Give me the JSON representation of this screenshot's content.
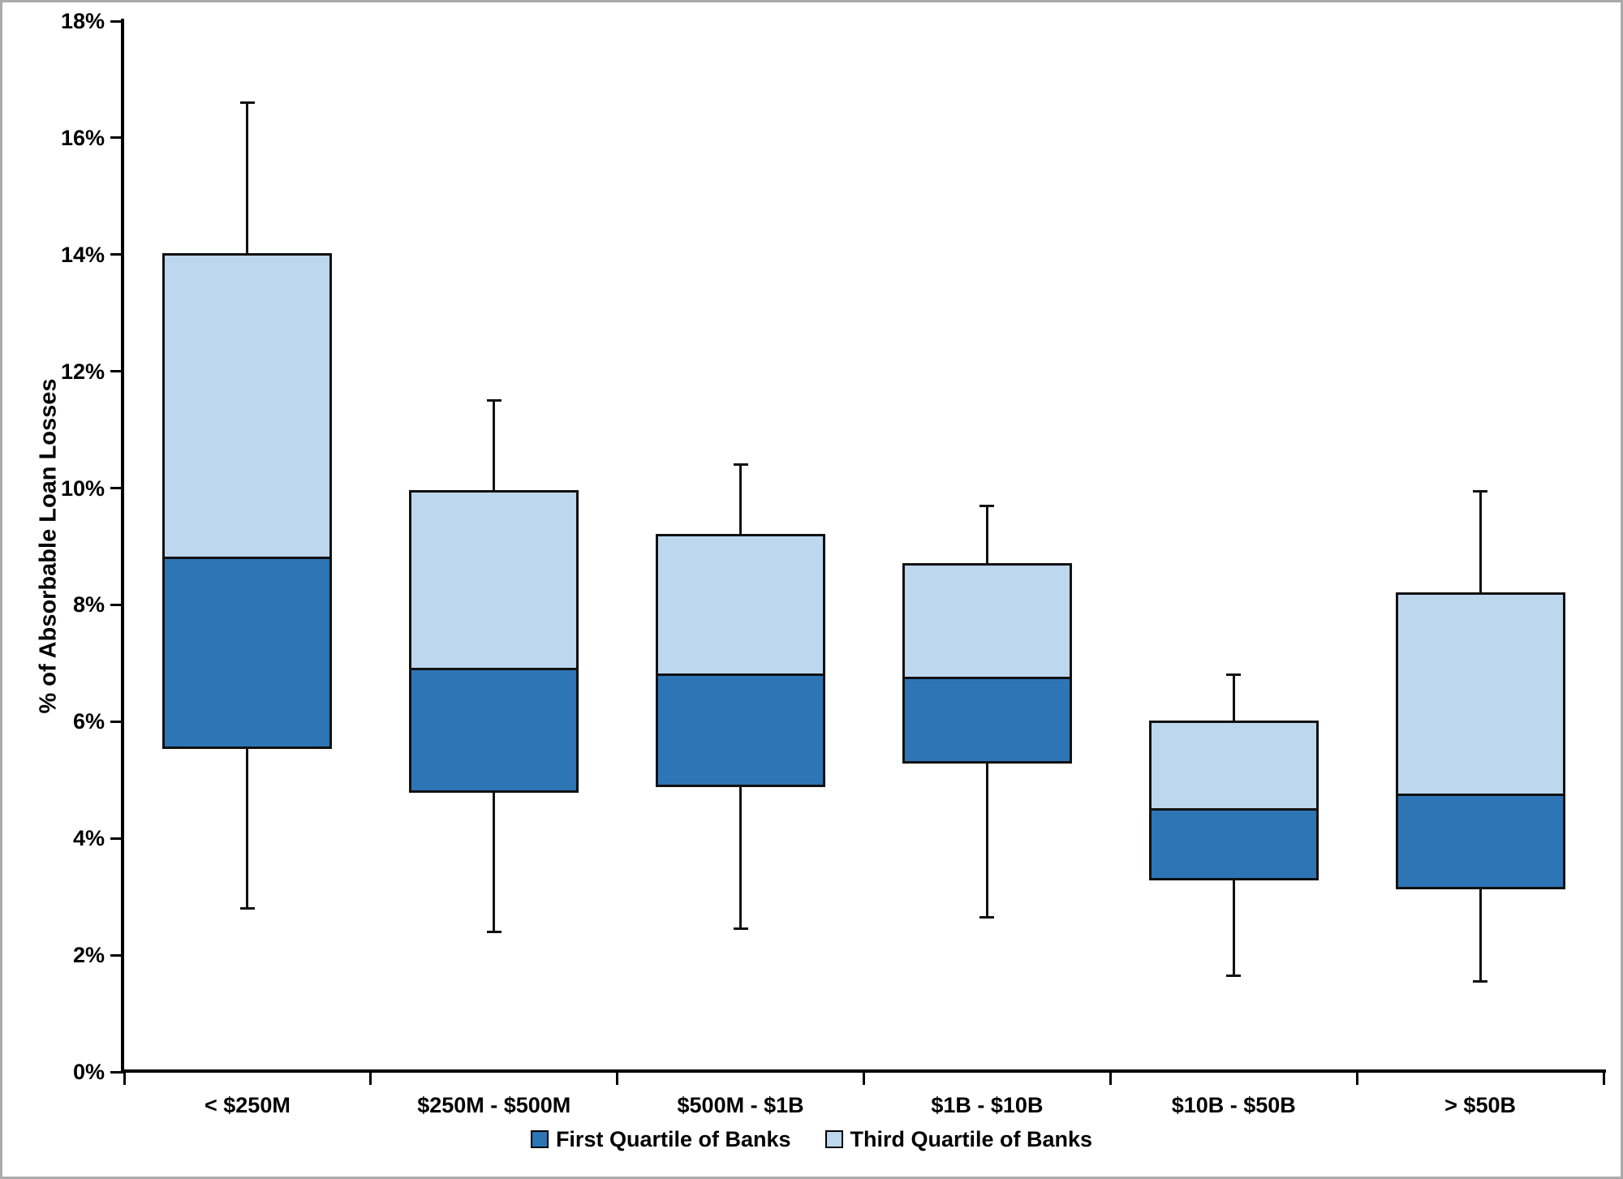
{
  "chart_data": {
    "type": "boxplot",
    "title": "",
    "xlabel": "",
    "ylabel": "% of Absorbable Loan Losses",
    "y_axis": {
      "min": 0,
      "max": 18,
      "step": 2,
      "tick_labels": [
        "0%",
        "2%",
        "4%",
        "6%",
        "8%",
        "10%",
        "12%",
        "14%",
        "16%",
        "18%"
      ]
    },
    "categories": [
      "< $250M",
      "$250M - $500M",
      "$500M - $1B",
      "$1B - $10B",
      "$10B - $50B",
      "> $50B"
    ],
    "series": [
      {
        "label": "< $250M",
        "whisker_low": 2.8,
        "box_low": 5.55,
        "box_mid": 8.8,
        "box_high": 14.0,
        "whisker_high": 16.6
      },
      {
        "label": "$250M - $500M",
        "whisker_low": 2.4,
        "box_low": 4.8,
        "box_mid": 6.9,
        "box_high": 9.95,
        "whisker_high": 11.5
      },
      {
        "label": "$500M - $1B",
        "whisker_low": 2.45,
        "box_low": 4.9,
        "box_mid": 6.8,
        "box_high": 9.2,
        "whisker_high": 10.4
      },
      {
        "label": "$1B - $10B",
        "whisker_low": 2.65,
        "box_low": 5.3,
        "box_mid": 6.75,
        "box_high": 8.7,
        "whisker_high": 9.7
      },
      {
        "label": "$10B - $50B",
        "whisker_low": 1.65,
        "box_low": 3.3,
        "box_mid": 4.5,
        "box_high": 6.0,
        "whisker_high": 6.8
      },
      {
        "label": "> $50B",
        "whisker_low": 1.55,
        "box_low": 3.15,
        "box_mid": 4.75,
        "box_high": 8.2,
        "whisker_high": 9.95
      }
    ],
    "segment_semantics": {
      "dark_segment": "box_low to box_mid = First Quartile of Banks",
      "light_segment": "box_mid to box_high = Third Quartile of Banks"
    },
    "legend": [
      {
        "label": "First Quartile of Banks",
        "color": "#2E75B6"
      },
      {
        "label": "Third Quartile of Banks",
        "color": "#BDD7EE"
      }
    ],
    "colors": {
      "first_quartile": "#2E75B6",
      "third_quartile": "#BDD7EE",
      "box_border": "#111111",
      "axis": "#000000",
      "background": "#FFFFFF",
      "page_border": "#AAAAAA"
    },
    "layout": {
      "grid": false,
      "legend_position": "bottom-center"
    }
  }
}
